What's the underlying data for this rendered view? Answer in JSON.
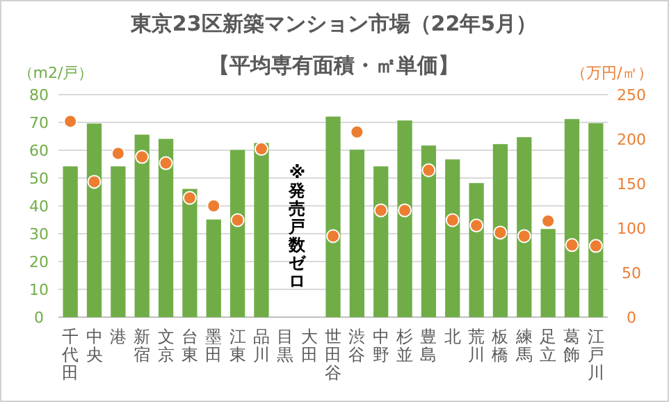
{
  "chart_data": {
    "type": "bar",
    "title": "東京23区新築マンション市場（22年5月）",
    "subtitle": "【平均専有面積・㎡単価】",
    "ylabel": "（m2/戸）",
    "y2label": "（万円/㎡）",
    "categories": [
      "千代田",
      "中央",
      "港",
      "新宿",
      "文京",
      "台東",
      "墨田",
      "江東",
      "品川",
      "目黒",
      "大田",
      "世田谷",
      "渋谷",
      "中野",
      "杉並",
      "豊島",
      "北",
      "荒川",
      "板橋",
      "練馬",
      "足立",
      "葛飾",
      "江戸川"
    ],
    "series": [
      {
        "color": "#70ad47",
        "values": [
          54.2,
          69.6,
          54.2,
          65.6,
          64.1,
          46.1,
          35.1,
          60.1,
          62.6,
          null,
          null,
          72.1,
          60.2,
          54.2,
          70.7,
          61.7,
          56.7,
          48.2,
          62.2,
          64.7,
          31.7,
          71.2,
          69.7
        ]
      },
      {
        "type": "scatter",
        "axis": "y2",
        "color": "#ed7d31",
        "marker": "circle",
        "values": [
          220,
          152,
          184,
          180,
          173,
          134,
          125,
          109,
          189,
          null,
          null,
          91,
          208,
          120,
          120,
          165,
          109,
          103,
          95,
          91,
          108,
          81,
          80
        ]
      }
    ],
    "ylim": [
      0,
      80
    ],
    "yticks": [
      0,
      10,
      20,
      30,
      40,
      50,
      60,
      70,
      80
    ],
    "y2lim": [
      0,
      250
    ],
    "y2ticks": [
      0,
      50,
      100,
      150,
      200,
      250
    ],
    "grid": "y",
    "annotations": [
      "※発売戸数ゼロ"
    ]
  }
}
